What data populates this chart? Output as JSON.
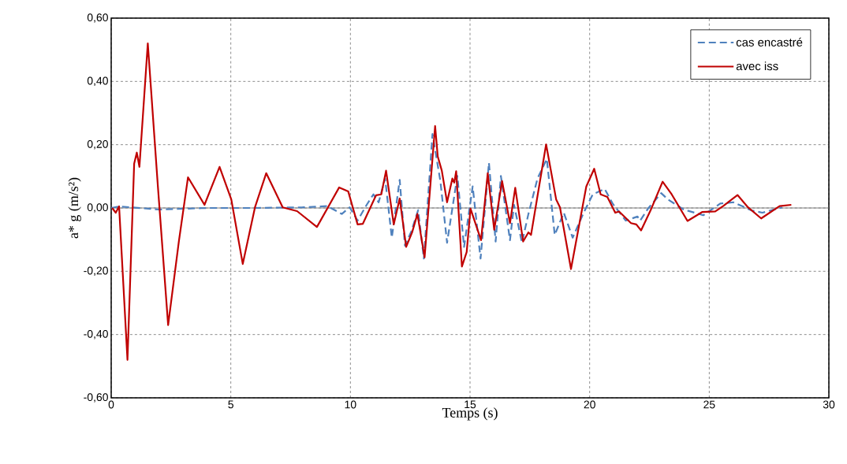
{
  "chart_data": {
    "type": "line",
    "xlabel": "Temps (s)",
    "ylabel": "a* g (m/s²)",
    "xlim": [
      0,
      30
    ],
    "xticks": [
      0,
      5,
      10,
      15,
      20,
      25,
      30
    ],
    "ylim": [
      -0.6,
      0.6
    ],
    "yticks": [
      {
        "value": -0.6,
        "label": "-0,60"
      },
      {
        "value": -0.4,
        "label": "-0,40"
      },
      {
        "value": -0.2,
        "label": "-0,20"
      },
      {
        "value": 0,
        "label": "0,00"
      },
      {
        "value": 0.2,
        "label": "0,20"
      },
      {
        "value": 0.4,
        "label": "0,40"
      },
      {
        "value": 0.6,
        "label": "0,60"
      }
    ],
    "grid": true,
    "legend": "top right",
    "marker": "none",
    "ref_lines": [
      {
        "axis": "y",
        "value": 0,
        "color": "#808080"
      }
    ],
    "series": [
      {
        "name": "cas encastré",
        "color": "#4f81bd",
        "line_style": "dashed",
        "x": [
          0,
          0.33,
          2,
          4,
          6,
          8,
          9.03,
          9.64,
          9.97,
          10.3,
          10.68,
          10.96,
          11.18,
          11.45,
          11.73,
          12.06,
          12.28,
          12.55,
          12.83,
          13.07,
          13.43,
          13.76,
          14.04,
          14.47,
          14.75,
          15.11,
          15.44,
          15.79,
          16.07,
          16.29,
          16.67,
          16.84,
          17.17,
          17.44,
          17.82,
          18.21,
          18.54,
          18.92,
          19.29,
          19.75,
          20.13,
          20.63,
          20.96,
          21.51,
          22.0,
          22.11,
          22.44,
          22.99,
          23.27,
          23.93,
          24.75,
          25.46,
          26.01,
          26.78,
          27.22,
          28.05
        ],
        "values": [
          0,
          0.005,
          -0.005,
          0,
          0,
          0.002,
          0.006,
          -0.019,
          0.002,
          -0.04,
          0.01,
          0.043,
          0.018,
          0.093,
          -0.094,
          0.089,
          -0.119,
          -0.073,
          -0.007,
          -0.16,
          0.234,
          0.085,
          -0.11,
          0.101,
          -0.123,
          0.068,
          -0.16,
          0.143,
          -0.106,
          0.101,
          -0.102,
          0.01,
          -0.11,
          -0.019,
          0.093,
          0.155,
          -0.085,
          -0.015,
          -0.094,
          -0.015,
          0.043,
          0.06,
          0.014,
          -0.04,
          -0.027,
          -0.04,
          -0.002,
          0.047,
          0.027,
          -0.005,
          -0.023,
          0.014,
          0.018,
          -0.008,
          -0.015,
          0.002
        ]
      },
      {
        "name": "avec iss",
        "color": "#c00000",
        "line_style": "solid",
        "x": [
          0.04,
          0.19,
          0.33,
          0.68,
          0.96,
          1.07,
          1.18,
          1.53,
          1.95,
          2.38,
          2.83,
          3.21,
          3.9,
          4.53,
          5.02,
          5.5,
          6.01,
          6.48,
          7.17,
          7.77,
          8.6,
          9.53,
          9.91,
          10.3,
          10.52,
          11.07,
          11.29,
          11.49,
          11.81,
          12.06,
          12.33,
          12.58,
          12.8,
          13.1,
          13.54,
          13.65,
          13.82,
          14.04,
          14.26,
          14.34,
          14.42,
          14.66,
          14.86,
          15.02,
          15.46,
          15.74,
          16.01,
          16.34,
          16.67,
          16.89,
          17.22,
          17.44,
          17.55,
          18.18,
          18.6,
          18.76,
          19.22,
          19.86,
          20.19,
          20.46,
          20.74,
          21.07,
          21.23,
          21.73,
          21.95,
          22.15,
          22.55,
          23.05,
          23.43,
          24.09,
          24.7,
          25.25,
          25.58,
          26.18,
          26.62,
          27.17,
          27.94,
          28.43
        ],
        "values": [
          0,
          -0.015,
          0.005,
          -0.48,
          0.14,
          0.175,
          0.13,
          0.52,
          0.07,
          -0.37,
          -0.105,
          0.097,
          0.01,
          0.13,
          0.027,
          -0.177,
          0.002,
          0.11,
          0.002,
          -0.01,
          -0.06,
          0.065,
          0.052,
          -0.052,
          -0.05,
          0.04,
          0.043,
          0.118,
          -0.052,
          0.03,
          -0.123,
          -0.077,
          -0.019,
          -0.156,
          0.259,
          0.163,
          0.118,
          0.018,
          0.093,
          0.08,
          0.116,
          -0.185,
          -0.139,
          -0.002,
          -0.102,
          0.11,
          -0.069,
          0.085,
          -0.048,
          0.064,
          -0.106,
          -0.077,
          -0.085,
          0.201,
          0.027,
          0.002,
          -0.193,
          0.068,
          0.124,
          0.043,
          0.035,
          -0.015,
          -0.011,
          -0.048,
          -0.052,
          -0.071,
          -0.007,
          0.083,
          0.043,
          -0.041,
          -0.013,
          -0.011,
          0.006,
          0.041,
          0.002,
          -0.033,
          0.006,
          0.01
        ]
      }
    ]
  }
}
